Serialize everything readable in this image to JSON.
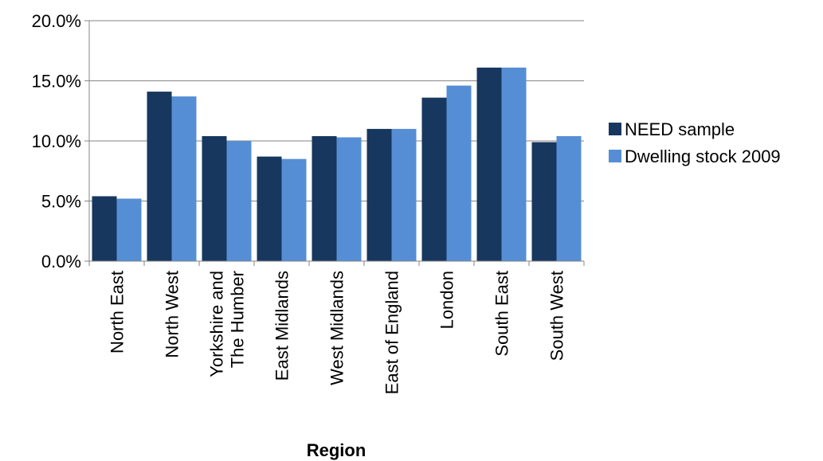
{
  "chart_data": {
    "type": "bar",
    "title": "",
    "xlabel": "Region",
    "ylabel": "",
    "ylim": [
      0,
      0.2
    ],
    "yticks": [
      0,
      0.05,
      0.1,
      0.15,
      0.2
    ],
    "ytick_labels": [
      "0.0%",
      "5.0%",
      "10.0%",
      "15.0%",
      "20.0%"
    ],
    "categories": [
      [
        "North East"
      ],
      [
        "North West"
      ],
      [
        "Yorkshire and",
        "The Humber"
      ],
      [
        "East Midlands"
      ],
      [
        "West Midlands"
      ],
      [
        "East of England"
      ],
      [
        "London"
      ],
      [
        "South East"
      ],
      [
        "South West"
      ]
    ],
    "series": [
      {
        "name": "NEED sample",
        "color": "#17375e",
        "values": [
          0.054,
          0.141,
          0.104,
          0.087,
          0.104,
          0.11,
          0.136,
          0.161,
          0.099
        ]
      },
      {
        "name": "Dwelling stock 2009",
        "color": "#558ed5",
        "values": [
          0.052,
          0.137,
          0.1,
          0.085,
          0.103,
          0.11,
          0.146,
          0.161,
          0.104
        ]
      }
    ],
    "grid": true,
    "legend_position": "right"
  }
}
